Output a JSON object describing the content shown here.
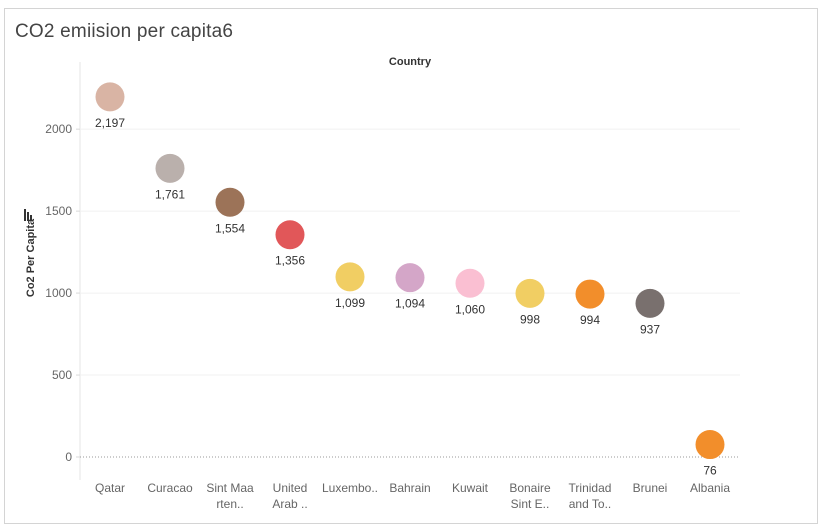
{
  "title": "CO2 emiision per capita6",
  "chart_data": {
    "type": "scatter",
    "title": "CO2 emiision per capita6",
    "column_header": "Country",
    "ylabel": "Co2 Per Capita",
    "ylim": [
      0,
      2300
    ],
    "yticks": [
      0,
      500,
      1000,
      1500,
      2000
    ],
    "ytick_labels": [
      "0",
      "500",
      "1000",
      "1500",
      "2000"
    ],
    "categories": [
      {
        "label": [
          "Qatar"
        ],
        "value": 2197,
        "value_label": "2,197",
        "color": "#d9b4a4"
      },
      {
        "label": [
          "Curacao"
        ],
        "value": 1761,
        "value_label": "1,761",
        "color": "#bab0ac"
      },
      {
        "label": [
          "Sint Maa",
          "rten.."
        ],
        "value": 1554,
        "value_label": "1,554",
        "color": "#9c7358"
      },
      {
        "label": [
          "United",
          "Arab .."
        ],
        "value": 1356,
        "value_label": "1,356",
        "color": "#e15759"
      },
      {
        "label": [
          "Luxembo.."
        ],
        "value": 1099,
        "value_label": "1,099",
        "color": "#f1ce63"
      },
      {
        "label": [
          "Bahrain"
        ],
        "value": 1094,
        "value_label": "1,094",
        "color": "#d4a6c8"
      },
      {
        "label": [
          "Kuwait"
        ],
        "value": 1060,
        "value_label": "1,060",
        "color": "#fabfd2"
      },
      {
        "label": [
          "Bonaire",
          "Sint E.."
        ],
        "value": 998,
        "value_label": "998",
        "color": "#f1ce63"
      },
      {
        "label": [
          "Trinidad",
          "and To.."
        ],
        "value": 994,
        "value_label": "994",
        "color": "#f28e2b"
      },
      {
        "label": [
          "Brunei"
        ],
        "value": 937,
        "value_label": "937",
        "color": "#79706e"
      },
      {
        "label": [
          "Albania"
        ],
        "value": 76,
        "value_label": "76",
        "color": "#f28e2b"
      }
    ],
    "grid": true,
    "zero_line": "dotted"
  }
}
